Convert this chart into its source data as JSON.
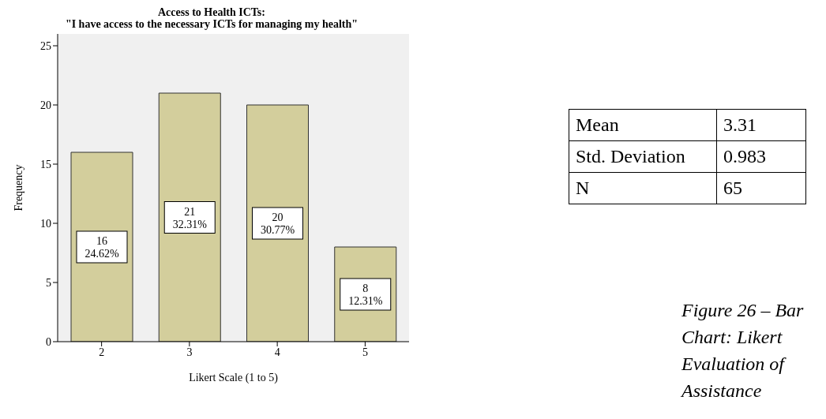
{
  "chart_data": {
    "type": "bar",
    "title": "Access to Health ICTs:",
    "subtitle": "\"I have access to the necessary ICTs for managing my health\"",
    "xlabel": "Likert Scale (1 to 5)",
    "ylabel": "Frequency",
    "categories": [
      "2",
      "3",
      "4",
      "5"
    ],
    "values": [
      16,
      21,
      20,
      8
    ],
    "value_labels": [
      "16\n24.62%",
      "21\n32.31%",
      "20\n30.77%",
      "8\n12.31%"
    ],
    "color": "#d3ce9c",
    "ylim": [
      0,
      26
    ],
    "yticks": [
      0,
      5,
      10,
      15,
      20,
      25
    ],
    "annotations": [
      "Mean",
      "3.31",
      "Std. Deviation",
      "0.983",
      "N",
      "65",
      "Figure 26 – Bar Chart: Likert Evaluation of Assistance"
    ]
  }
}
